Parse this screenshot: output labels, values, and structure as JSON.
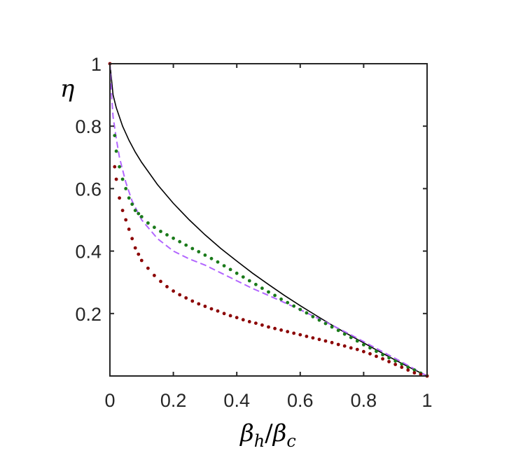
{
  "chart_data": {
    "type": "line",
    "title": "",
    "xlabel_main": "β",
    "xlabel_sub1": "h",
    "xlabel_slash": "/",
    "xlabel_main2": "β",
    "xlabel_sub2": "c",
    "ylabel": "η",
    "xlim": [
      0,
      1
    ],
    "ylim": [
      0,
      1
    ],
    "x_ticks": [
      {
        "value": 0,
        "label": "0"
      },
      {
        "value": 0.2,
        "label": "0.2"
      },
      {
        "value": 0.4,
        "label": "0.4"
      },
      {
        "value": 0.6,
        "label": "0.6"
      },
      {
        "value": 0.8,
        "label": "0.8"
      },
      {
        "value": 1,
        "label": "1"
      }
    ],
    "y_ticks": [
      {
        "value": 0.2,
        "label": "0.2"
      },
      {
        "value": 0.4,
        "label": "0.4"
      },
      {
        "value": 0.6,
        "label": "0.6"
      },
      {
        "value": 0.8,
        "label": "0.8"
      },
      {
        "value": 1,
        "label": "1"
      }
    ],
    "grid": false,
    "legend": "none",
    "series": [
      {
        "style": "solid",
        "color": "#000000",
        "x": [
          0,
          0.01,
          0.02,
          0.04,
          0.06,
          0.08,
          0.1,
          0.15,
          0.2,
          0.25,
          0.3,
          0.35,
          0.4,
          0.45,
          0.5,
          0.55,
          0.6,
          0.65,
          0.7,
          0.75,
          0.8,
          0.85,
          0.9,
          0.95,
          1.0
        ],
        "y": [
          1.0,
          0.9,
          0.859,
          0.8,
          0.755,
          0.717,
          0.684,
          0.613,
          0.553,
          0.5,
          0.452,
          0.408,
          0.368,
          0.329,
          0.293,
          0.258,
          0.225,
          0.194,
          0.163,
          0.134,
          0.106,
          0.078,
          0.051,
          0.025,
          0.0
        ]
      },
      {
        "style": "dashed",
        "color": "#b266ff",
        "x": [
          0,
          0.005,
          0.01,
          0.02,
          0.03,
          0.05,
          0.07,
          0.1,
          0.15,
          0.2,
          0.25,
          0.3,
          0.35,
          0.4,
          0.45,
          0.5,
          0.55,
          0.6,
          0.65,
          0.7,
          0.75,
          0.8,
          0.85,
          0.9,
          0.95,
          1.0
        ],
        "y": [
          1.0,
          0.9,
          0.83,
          0.76,
          0.7,
          0.62,
          0.56,
          0.5,
          0.44,
          0.4,
          0.375,
          0.355,
          0.33,
          0.305,
          0.28,
          0.258,
          0.235,
          0.212,
          0.188,
          0.163,
          0.137,
          0.11,
          0.083,
          0.056,
          0.028,
          0.0
        ]
      },
      {
        "style": "dotted",
        "color": "#1a7a1a",
        "x": [
          0.015,
          0.02,
          0.03,
          0.04,
          0.05,
          0.06,
          0.07,
          0.08,
          0.09,
          0.1,
          0.12,
          0.14,
          0.16,
          0.18,
          0.2,
          0.22,
          0.24,
          0.26,
          0.28,
          0.3,
          0.32,
          0.34,
          0.36,
          0.38,
          0.4,
          0.42,
          0.44,
          0.46,
          0.48,
          0.5,
          0.52,
          0.54,
          0.56,
          0.58,
          0.6,
          0.62,
          0.64,
          0.66,
          0.68,
          0.7,
          0.72,
          0.74,
          0.76,
          0.78,
          0.8,
          0.82,
          0.84,
          0.86,
          0.88,
          0.9,
          0.92,
          0.94,
          0.96,
          0.98,
          1.0
        ],
        "y": [
          0.77,
          0.72,
          0.67,
          0.63,
          0.6,
          0.57,
          0.55,
          0.53,
          0.52,
          0.51,
          0.49,
          0.476,
          0.463,
          0.452,
          0.441,
          0.43,
          0.419,
          0.408,
          0.398,
          0.387,
          0.376,
          0.365,
          0.353,
          0.341,
          0.329,
          0.317,
          0.305,
          0.293,
          0.281,
          0.269,
          0.258,
          0.246,
          0.235,
          0.224,
          0.213,
          0.202,
          0.19,
          0.179,
          0.168,
          0.157,
          0.146,
          0.134,
          0.123,
          0.112,
          0.1,
          0.09,
          0.079,
          0.068,
          0.058,
          0.048,
          0.038,
          0.028,
          0.019,
          0.009,
          0.0
        ]
      },
      {
        "style": "dotted",
        "color": "#8b0000",
        "x": [
          0,
          0.015,
          0.02,
          0.03,
          0.04,
          0.05,
          0.06,
          0.07,
          0.08,
          0.09,
          0.1,
          0.12,
          0.14,
          0.16,
          0.18,
          0.2,
          0.22,
          0.24,
          0.26,
          0.28,
          0.3,
          0.32,
          0.34,
          0.36,
          0.38,
          0.4,
          0.42,
          0.44,
          0.46,
          0.48,
          0.5,
          0.52,
          0.54,
          0.56,
          0.58,
          0.6,
          0.62,
          0.64,
          0.66,
          0.68,
          0.7,
          0.72,
          0.74,
          0.76,
          0.78,
          0.8,
          0.82,
          0.84,
          0.86,
          0.88,
          0.9,
          0.92,
          0.94,
          0.96,
          0.98,
          1.0
        ],
        "y": [
          1.0,
          0.67,
          0.63,
          0.57,
          0.53,
          0.5,
          0.47,
          0.44,
          0.41,
          0.39,
          0.37,
          0.345,
          0.322,
          0.303,
          0.286,
          0.272,
          0.26,
          0.25,
          0.24,
          0.231,
          0.223,
          0.215,
          0.208,
          0.2,
          0.193,
          0.187,
          0.18,
          0.174,
          0.169,
          0.163,
          0.157,
          0.152,
          0.147,
          0.142,
          0.137,
          0.132,
          0.127,
          0.122,
          0.117,
          0.112,
          0.107,
          0.101,
          0.096,
          0.09,
          0.085,
          0.078,
          0.071,
          0.063,
          0.055,
          0.046,
          0.037,
          0.028,
          0.019,
          0.01,
          0.005,
          0.0
        ]
      }
    ]
  }
}
